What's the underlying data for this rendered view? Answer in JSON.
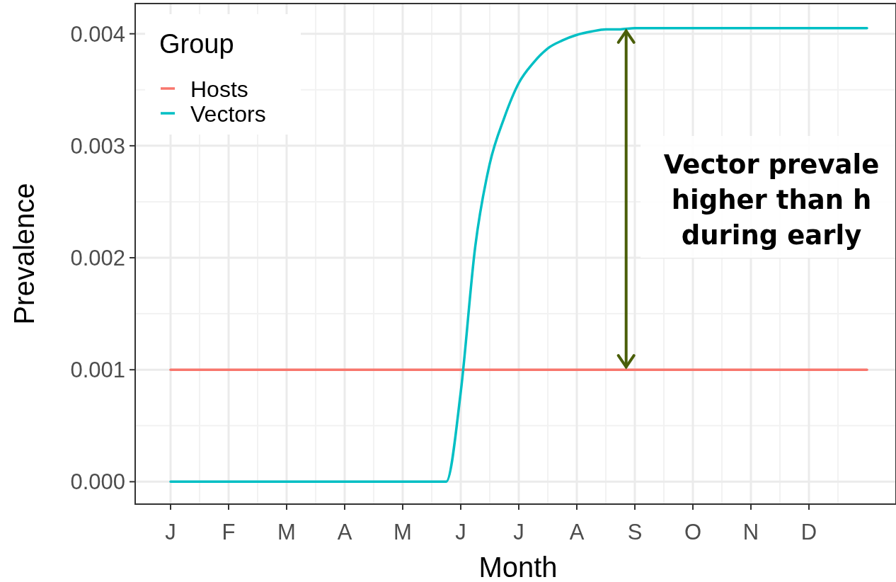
{
  "chart_data": {
    "type": "line",
    "xlabel": "Month",
    "ylabel": "Prevalence",
    "legend_title": "Group",
    "categories": [
      "J",
      null,
      null,
      null,
      "F",
      null,
      null,
      null,
      "M",
      null,
      null,
      null,
      "A",
      null,
      null,
      null,
      "M",
      null,
      null,
      null,
      "J",
      null,
      null,
      null,
      "J",
      null,
      null,
      null,
      "A",
      null,
      null,
      null,
      "S",
      null,
      null,
      null,
      "O",
      null,
      null,
      null,
      "N",
      null,
      null,
      null,
      "D",
      null,
      null,
      null,
      null
    ],
    "ylim": [
      -0.0002,
      0.00427
    ],
    "yticks": [
      {
        "value": 0,
        "label": "0.000"
      },
      {
        "value": 0.001,
        "label": "0.001"
      },
      {
        "value": 0.002,
        "label": "0.002"
      },
      {
        "value": 0.003,
        "label": "0.003"
      },
      {
        "value": 0.004,
        "label": "0.004"
      }
    ],
    "series": [
      {
        "name": "Hosts",
        "color": "#f8766d",
        "values": [
          0.001,
          0.001,
          0.001,
          0.001,
          0.001,
          0.001,
          0.001,
          0.001,
          0.001,
          0.001,
          0.001,
          0.001,
          0.001,
          0.001,
          0.001,
          0.001,
          0.001,
          0.001,
          0.001,
          0.001,
          0.001,
          0.001,
          0.001,
          0.001,
          0.001,
          0.001,
          0.001,
          0.001,
          0.001,
          0.001,
          0.001,
          0.001,
          0.001,
          0.001,
          0.001,
          0.001,
          0.001,
          0.001,
          0.001,
          0.001,
          0.001,
          0.001,
          0.001,
          0.001,
          0.001,
          0.001,
          0.001,
          0.001,
          0.001
        ]
      },
      {
        "name": "Vectors",
        "color": "#00bfc4",
        "values": [
          0,
          0,
          0,
          0,
          0,
          0,
          0,
          0,
          0,
          0,
          0,
          0,
          0,
          0,
          0,
          0,
          0,
          0,
          0,
          0,
          0.0008,
          0.0021,
          0.00284,
          0.00325,
          0.00356,
          0.00374,
          0.00387,
          0.00394,
          0.00399,
          0.00402,
          0.00404,
          0.00404,
          0.00405,
          0.00405,
          0.00405,
          0.00405,
          0.00405,
          0.00405,
          0.00405,
          0.00405,
          0.00405,
          0.00405,
          0.00405,
          0.00405,
          0.00405,
          0.00405,
          0.00405,
          0.00405,
          0.00405
        ]
      }
    ],
    "annotations": [
      "Vector prevale\nhigher than h\nduring early"
    ],
    "grid": true,
    "legend": "top left",
    "line_style": "solid"
  }
}
